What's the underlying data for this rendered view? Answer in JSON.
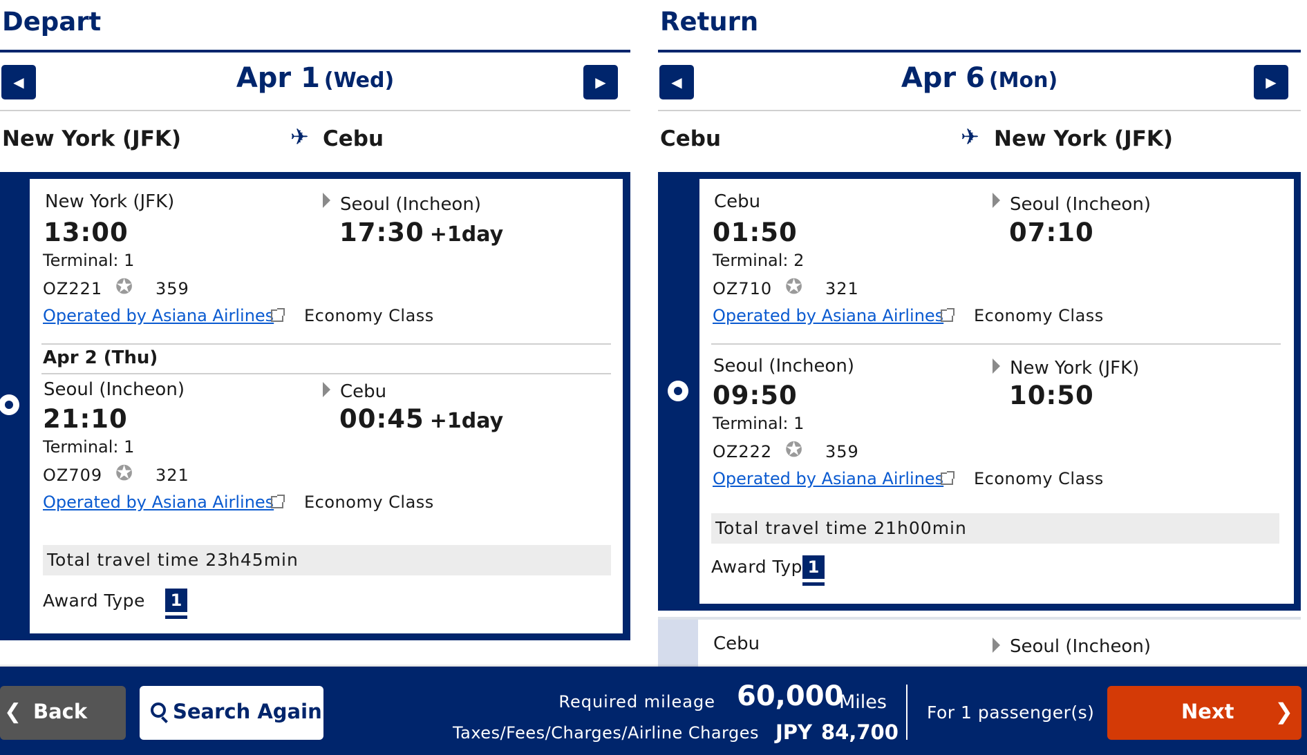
{
  "depart": {
    "title": "Depart",
    "date": "Apr 1",
    "weekday": "(Wed)",
    "route_from": "New York (JFK)",
    "route_to": "Cebu",
    "segments": [
      {
        "from": "New York (JFK)",
        "to": "Seoul (Incheon)",
        "dep": "13:00",
        "arr": "17:30",
        "arr_plus": "+1day",
        "terminal": "Terminal: 1",
        "flight": "OZ221",
        "aircraft": "359",
        "operated": "Operated by Asiana Airlines",
        "cabin": "Economy Class"
      },
      {
        "from": "Seoul (Incheon)",
        "to": "Cebu",
        "dep": "21:10",
        "arr": "00:45",
        "arr_plus": "+1day",
        "terminal": "Terminal: 1",
        "flight": "OZ709",
        "aircraft": "321",
        "operated": "Operated by Asiana Airlines",
        "cabin": "Economy Class"
      }
    ],
    "mid_date": "Apr 2 (Thu)",
    "total": "Total travel time 23h45min",
    "award_label": "Award Type",
    "award_value": "1"
  },
  "return": {
    "title": "Return",
    "date": "Apr 6",
    "weekday": "(Mon)",
    "route_from": "Cebu",
    "route_to": "New York (JFK)",
    "segments": [
      {
        "from": "Cebu",
        "to": "Seoul (Incheon)",
        "dep": "01:50",
        "arr": "07:10",
        "terminal": "Terminal: 2",
        "flight": "OZ710",
        "aircraft": "321",
        "operated": "Operated by Asiana Airlines",
        "cabin": "Economy Class"
      },
      {
        "from": "Seoul (Incheon)",
        "to": "New York (JFK)",
        "dep": "09:50",
        "arr": "10:50",
        "terminal": "Terminal: 1",
        "flight": "OZ222",
        "aircraft": "359",
        "operated": "Operated by Asiana Airlines",
        "cabin": "Economy Class"
      }
    ],
    "total": "Total travel time 21h00min",
    "award_label": "Award Type",
    "award_value": "1",
    "next_option_from": "Cebu",
    "next_option_to": "Seoul (Incheon)"
  },
  "footer": {
    "back": "Back",
    "search": "Search Again",
    "required_label": "Required mileage",
    "required_value": "60,000",
    "required_unit": "Miles",
    "tax_label": "Taxes/Fees/Charges/Airline Charges",
    "tax_currency": "JPY",
    "tax_value": "84,700",
    "passengers": "For 1 passenger(s)",
    "next": "Next"
  },
  "icons": {
    "prev": "caret-left-icon",
    "next": "caret-right-icon",
    "plane": "airplane-icon",
    "alliance": "star-alliance-icon",
    "external": "external-link-icon",
    "search": "magnifier-icon"
  },
  "colors": {
    "brand": "#00256c",
    "next_button": "#d43a06",
    "back_button": "#555555",
    "link": "#0a5ad0"
  }
}
